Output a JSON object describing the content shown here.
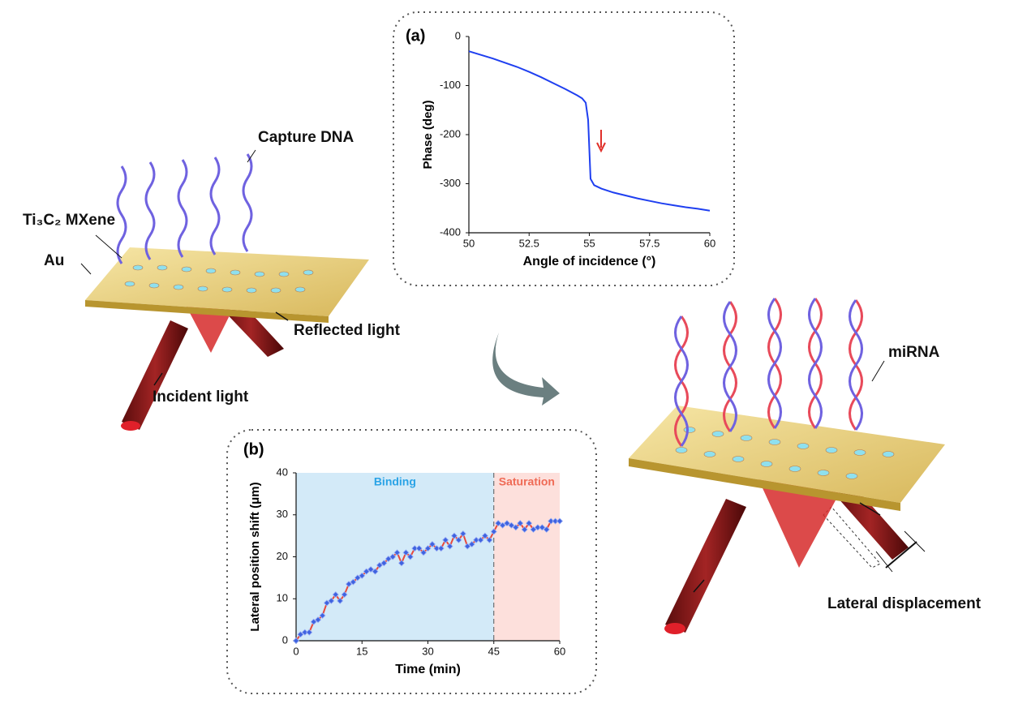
{
  "chart_data": [
    {
      "type": "line",
      "title": "(a)",
      "xlabel": "Angle of incidence (°)",
      "ylabel": "Phase (deg)",
      "xlim": [
        50,
        60
      ],
      "xticks": [
        50,
        52.5,
        55,
        57.5,
        60
      ],
      "ylim": [
        -400,
        0
      ],
      "yticks": [
        0,
        -100,
        -200,
        -300,
        -400
      ],
      "x": [
        50,
        51,
        52,
        52.5,
        53,
        53.5,
        54,
        54.5,
        54.7,
        54.85,
        54.95,
        55.0,
        55.05,
        55.2,
        55.5,
        56,
        56.5,
        57,
        57.5,
        58,
        58.5,
        59,
        59.5,
        60
      ],
      "series": [
        {
          "color": "#1f3ff0",
          "values": [
            -30,
            -45,
            -62,
            -72,
            -83,
            -95,
            -107,
            -120,
            -126,
            -135,
            -170,
            -230,
            -290,
            -303,
            -310,
            -318,
            -324,
            -330,
            -335,
            -340,
            -344,
            -348,
            -351,
            -355
          ]
        }
      ]
    },
    {
      "type": "line",
      "title": "(b)",
      "xlabel": "Time (min)",
      "ylabel": "Lateral position shift (μm)",
      "xlim": [
        0,
        60
      ],
      "xticks": [
        0,
        15,
        30,
        45,
        60
      ],
      "ylim": [
        0,
        40
      ],
      "yticks": [
        0,
        10,
        20,
        30,
        40
      ],
      "regions": [
        {
          "label": "Binding",
          "start": 0,
          "end": 45,
          "color": "#d3eaf8",
          "text_color": "#2aa3e6"
        },
        {
          "label": "Saturation",
          "start": 45,
          "end": 60,
          "color": "#fde0dc",
          "text_color": "#ef6a55"
        }
      ],
      "x": [
        0,
        1,
        2,
        3,
        4,
        5,
        6,
        7,
        8,
        9,
        10,
        11,
        12,
        13,
        14,
        15,
        16,
        17,
        18,
        19,
        20,
        21,
        22,
        23,
        24,
        25,
        26,
        27,
        28,
        29,
        30,
        31,
        32,
        33,
        34,
        35,
        36,
        37,
        38,
        39,
        40,
        41,
        42,
        43,
        44,
        45,
        46,
        47,
        48,
        49,
        50,
        51,
        52,
        53,
        54,
        55,
        56,
        57,
        58,
        59,
        60
      ],
      "series": [
        {
          "color": "#e8493c",
          "marker_color": "#3f63e0",
          "values": [
            0,
            1.5,
            2,
            2,
            4.5,
            5,
            6,
            9,
            9.5,
            11,
            9.5,
            11,
            13.5,
            14,
            15,
            15.5,
            16.5,
            17,
            16.5,
            18,
            18.5,
            19.5,
            20,
            21,
            18.5,
            21,
            20,
            22,
            22,
            21,
            22,
            23,
            22,
            22,
            24,
            22.5,
            25,
            24,
            25.5,
            22.5,
            23,
            24,
            24,
            25,
            24,
            26,
            28,
            27.5,
            28,
            27.5,
            27,
            28,
            26.5,
            28,
            26.5,
            27,
            27,
            26.5,
            28.5,
            28.5,
            28.5
          ]
        }
      ]
    }
  ],
  "labels": {
    "capture_dna": "Capture DNA",
    "mxene": "Ti₃C₂ MXene",
    "au": "Au",
    "reflected": "Reflected light",
    "incident": "Incident light",
    "mirna": "miRNA",
    "lateral": "Lateral  displacement"
  }
}
